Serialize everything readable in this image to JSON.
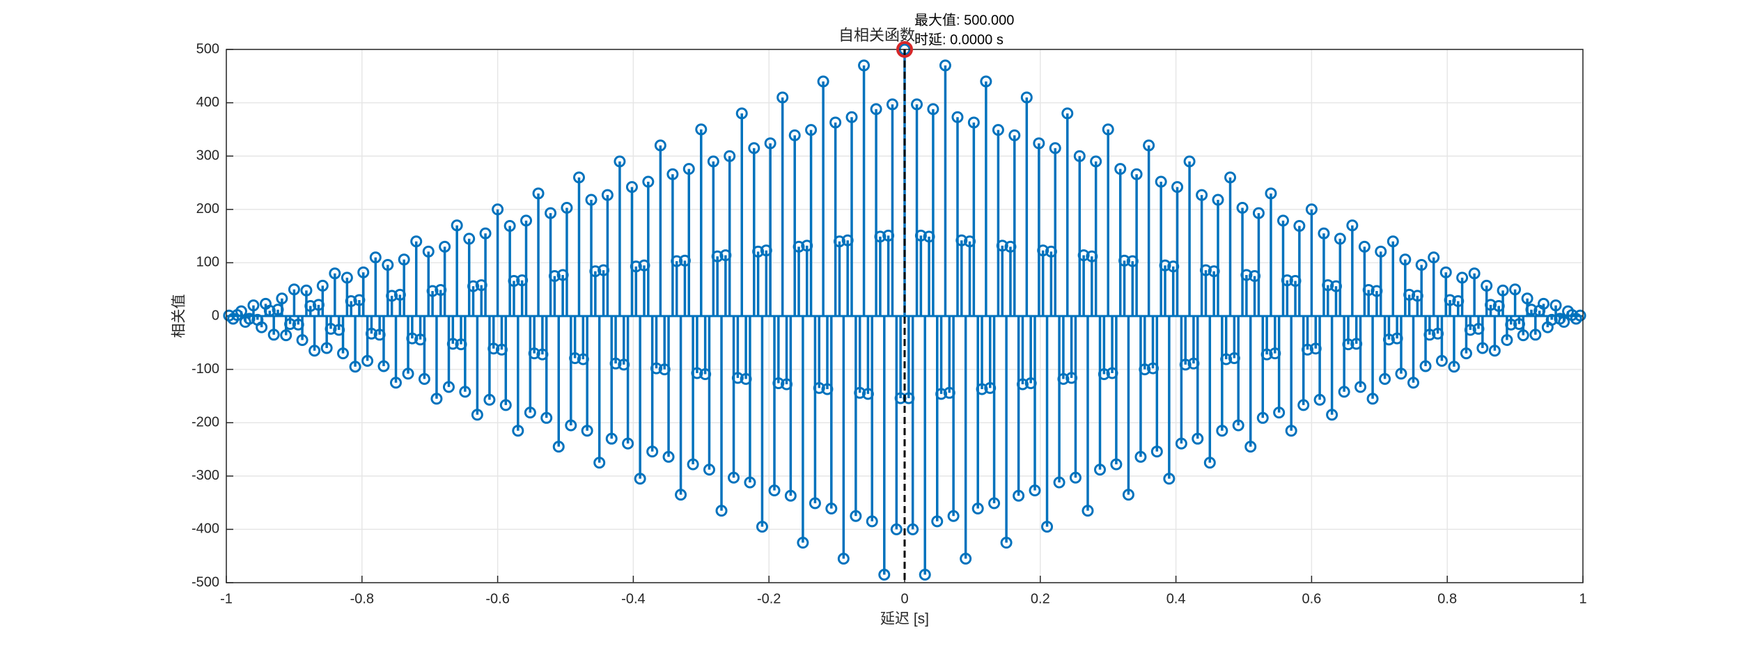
{
  "chart_data": {
    "type": "stem",
    "title": "自相关函数",
    "xlabel": "延迟 [s]",
    "ylabel": "相关值",
    "annotation": {
      "lines": [
        "最大值: 500.000",
        "时延: 0.0000 s"
      ],
      "color": "#d62728"
    },
    "color": "#0072bd",
    "grid": true,
    "xlim": [
      -1,
      1
    ],
    "ylim": [
      -500,
      500
    ],
    "xticks": [
      -1,
      -0.8,
      -0.6,
      -0.4,
      -0.2,
      0,
      0.2,
      0.4,
      0.6,
      0.8,
      1
    ],
    "yticks": [
      -500,
      -400,
      -300,
      -200,
      -100,
      0,
      100,
      200,
      300,
      400,
      500
    ],
    "x": [
      -0.996,
      -0.99,
      -0.984,
      -0.978,
      -0.972,
      -0.966,
      -0.96,
      -0.954,
      -0.948,
      -0.942,
      -0.936,
      -0.93,
      -0.924,
      -0.918,
      -0.912,
      -0.906,
      -0.9,
      -0.894,
      -0.888,
      -0.882,
      -0.876,
      -0.87,
      -0.864,
      -0.858,
      -0.852,
      -0.846,
      -0.84,
      -0.834,
      -0.828,
      -0.822,
      -0.816,
      -0.81,
      -0.804,
      -0.798,
      -0.792,
      -0.786,
      -0.78,
      -0.774,
      -0.768,
      -0.762,
      -0.756,
      -0.75,
      -0.744,
      -0.738,
      -0.732,
      -0.726,
      -0.72,
      -0.714,
      -0.708,
      -0.702,
      -0.696,
      -0.69,
      -0.684,
      -0.678,
      -0.672,
      -0.666,
      -0.66,
      -0.654,
      -0.648,
      -0.642,
      -0.636,
      -0.63,
      -0.624,
      -0.618,
      -0.612,
      -0.606,
      -0.6,
      -0.594,
      -0.588,
      -0.582,
      -0.576,
      -0.57,
      -0.564,
      -0.558,
      -0.552,
      -0.546,
      -0.54,
      -0.534,
      -0.528,
      -0.522,
      -0.516,
      -0.51,
      -0.504,
      -0.498,
      -0.492,
      -0.486,
      -0.48,
      -0.474,
      -0.468,
      -0.462,
      -0.456,
      -0.45,
      -0.444,
      -0.438,
      -0.432,
      -0.426,
      -0.42,
      -0.414,
      -0.408,
      -0.402,
      -0.396,
      -0.39,
      -0.384,
      -0.378,
      -0.372,
      -0.366,
      -0.36,
      -0.354,
      -0.348,
      -0.342,
      -0.336,
      -0.33,
      -0.324,
      -0.318,
      -0.312,
      -0.306,
      -0.3,
      -0.294,
      -0.288,
      -0.282,
      -0.276,
      -0.27,
      -0.264,
      -0.258,
      -0.252,
      -0.246,
      -0.24,
      -0.234,
      -0.228,
      -0.222,
      -0.216,
      -0.21,
      -0.204,
      -0.198,
      -0.192,
      -0.186,
      -0.18,
      -0.174,
      -0.168,
      -0.162,
      -0.156,
      -0.15,
      -0.144,
      -0.138,
      -0.132,
      -0.126,
      -0.12,
      -0.114,
      -0.108,
      -0.102,
      -0.096,
      -0.09,
      -0.084,
      -0.078,
      -0.072,
      -0.066,
      -0.06,
      -0.054,
      -0.048,
      -0.042,
      -0.036,
      -0.03,
      -0.024,
      -0.018,
      -0.012,
      -0.006,
      0,
      0.006,
      0.012,
      0.018,
      0.024,
      0.03,
      0.036,
      0.042,
      0.048,
      0.054,
      0.06,
      0.066,
      0.072,
      0.078,
      0.084,
      0.09,
      0.096,
      0.102,
      0.108,
      0.114,
      0.12,
      0.126,
      0.132,
      0.138,
      0.144,
      0.15,
      0.156,
      0.162,
      0.168,
      0.174,
      0.18,
      0.186,
      0.192,
      0.198,
      0.204,
      0.21,
      0.216,
      0.222,
      0.228,
      0.234,
      0.24,
      0.246,
      0.252,
      0.258,
      0.264,
      0.27,
      0.276,
      0.282,
      0.288,
      0.294,
      0.3,
      0.306,
      0.312,
      0.318,
      0.324,
      0.33,
      0.336,
      0.342,
      0.348,
      0.354,
      0.36,
      0.366,
      0.372,
      0.378,
      0.384,
      0.39,
      0.396,
      0.402,
      0.408,
      0.414,
      0.42,
      0.426,
      0.432,
      0.438,
      0.444,
      0.45,
      0.456,
      0.462,
      0.468,
      0.474,
      0.48,
      0.486,
      0.492,
      0.498,
      0.504,
      0.51,
      0.516,
      0.522,
      0.528,
      0.534,
      0.54,
      0.546,
      0.552,
      0.558,
      0.564,
      0.57,
      0.576,
      0.582,
      0.588,
      0.594,
      0.6,
      0.606,
      0.612,
      0.618,
      0.624,
      0.63,
      0.636,
      0.642,
      0.648,
      0.654,
      0.66,
      0.666,
      0.672,
      0.678,
      0.684,
      0.69,
      0.696,
      0.702,
      0.708,
      0.714,
      0.72,
      0.726,
      0.732,
      0.738,
      0.744,
      0.75,
      0.756,
      0.762,
      0.768,
      0.774,
      0.78,
      0.786,
      0.792,
      0.798,
      0.804,
      0.81,
      0.816,
      0.822,
      0.828,
      0.834,
      0.84,
      0.846,
      0.852,
      0.858,
      0.864,
      0.87,
      0.876,
      0.882,
      0.888,
      0.894,
      0.9,
      0.906,
      0.912,
      0.918,
      0.924,
      0.93,
      0.936,
      0.942,
      0.948,
      0.954,
      0.96,
      0.966,
      0.972,
      0.978,
      0.984,
      0.99,
      0.996
    ],
    "values": [
      1,
      -5,
      2,
      9,
      -11,
      -5,
      20,
      -7,
      -21,
      23,
      10,
      -35,
      12,
      33,
      -36,
      -15,
      50,
      -16,
      -45,
      48,
      19,
      -65,
      21,
      57,
      -60,
      -24,
      80,
      -26,
      -70,
      72,
      28,
      -95,
      30,
      82,
      -84,
      -33,
      110,
      -35,
      -94,
      96,
      38,
      -125,
      40,
      106,
      -108,
      -42,
      140,
      -44,
      -118,
      121,
      47,
      -155,
      49,
      130,
      -133,
      -52,
      170,
      -53,
      -142,
      145,
      56,
      -185,
      58,
      155,
      -157,
      -61,
      200,
      -63,
      -167,
      169,
      66,
      -215,
      67,
      179,
      -181,
      -70,
      230,
      -72,
      -191,
      193,
      75,
      -245,
      77,
      203,
      -205,
      -79,
      260,
      -81,
      -215,
      218,
      84,
      -275,
      86,
      227,
      -230,
      -89,
      290,
      -91,
      -239,
      242,
      93,
      -305,
      95,
      252,
      -254,
      -98,
      320,
      -100,
      -264,
      266,
      103,
      -335,
      104,
      276,
      -278,
      -107,
      350,
      -109,
      -288,
      290,
      112,
      -365,
      114,
      300,
      -303,
      -116,
      380,
      -118,
      -312,
      315,
      121,
      -395,
      123,
      324,
      -327,
      -126,
      410,
      -128,
      -337,
      339,
      130,
      -425,
      132,
      349,
      -351,
      -135,
      440,
      -137,
      -361,
      363,
      140,
      -455,
      142,
      373,
      -375,
      -144,
      470,
      -146,
      -385,
      388,
      149,
      -485,
      151,
      397,
      -400,
      -154,
      500,
      -154,
      -400,
      397,
      151,
      -485,
      149,
      388,
      -385,
      -146,
      470,
      -144,
      -375,
      373,
      142,
      -455,
      140,
      363,
      -361,
      -137,
      440,
      -135,
      -351,
      349,
      132,
      -425,
      130,
      339,
      -337,
      -128,
      410,
      -126,
      -327,
      324,
      123,
      -395,
      121,
      315,
      -312,
      -118,
      380,
      -116,
      -303,
      300,
      114,
      -365,
      112,
      290,
      -288,
      -109,
      350,
      -107,
      -278,
      276,
      104,
      -335,
      103,
      266,
      -264,
      -100,
      320,
      -98,
      -254,
      252,
      95,
      -305,
      93,
      242,
      -239,
      -91,
      290,
      -89,
      -230,
      227,
      86,
      -275,
      84,
      218,
      -215,
      -81,
      260,
      -79,
      -205,
      203,
      77,
      -245,
      75,
      193,
      -191,
      -72,
      230,
      -70,
      -181,
      179,
      67,
      -215,
      66,
      169,
      -167,
      -63,
      200,
      -61,
      -157,
      155,
      58,
      -185,
      56,
      145,
      -142,
      -53,
      170,
      -52,
      -133,
      130,
      49,
      -155,
      47,
      121,
      -118,
      -44,
      140,
      -42,
      -108,
      106,
      40,
      -125,
      38,
      96,
      -94,
      -35,
      110,
      -33,
      -84,
      82,
      30,
      -95,
      28,
      72,
      -70,
      -26,
      80,
      -24,
      -60,
      57,
      21,
      -65,
      19,
      48,
      -45,
      -16,
      50,
      -15,
      -36,
      33,
      12,
      -35,
      10,
      23,
      -21,
      -7,
      20,
      -5,
      -11,
      9,
      2,
      -5,
      1
    ]
  }
}
